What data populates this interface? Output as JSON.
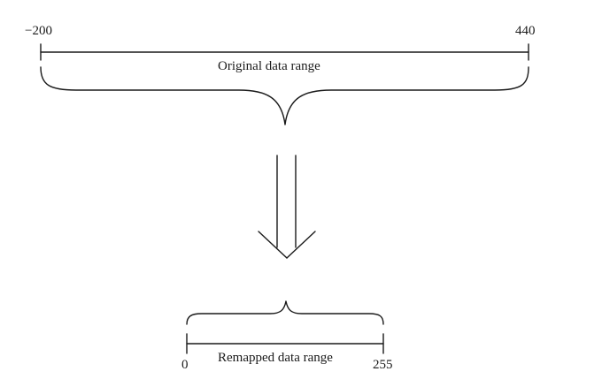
{
  "original_range": {
    "min_label": "−200",
    "max_label": "440",
    "title": "Original data range"
  },
  "remapped_range": {
    "min_label": "0",
    "max_label": "255",
    "title": "Remapped data range"
  }
}
